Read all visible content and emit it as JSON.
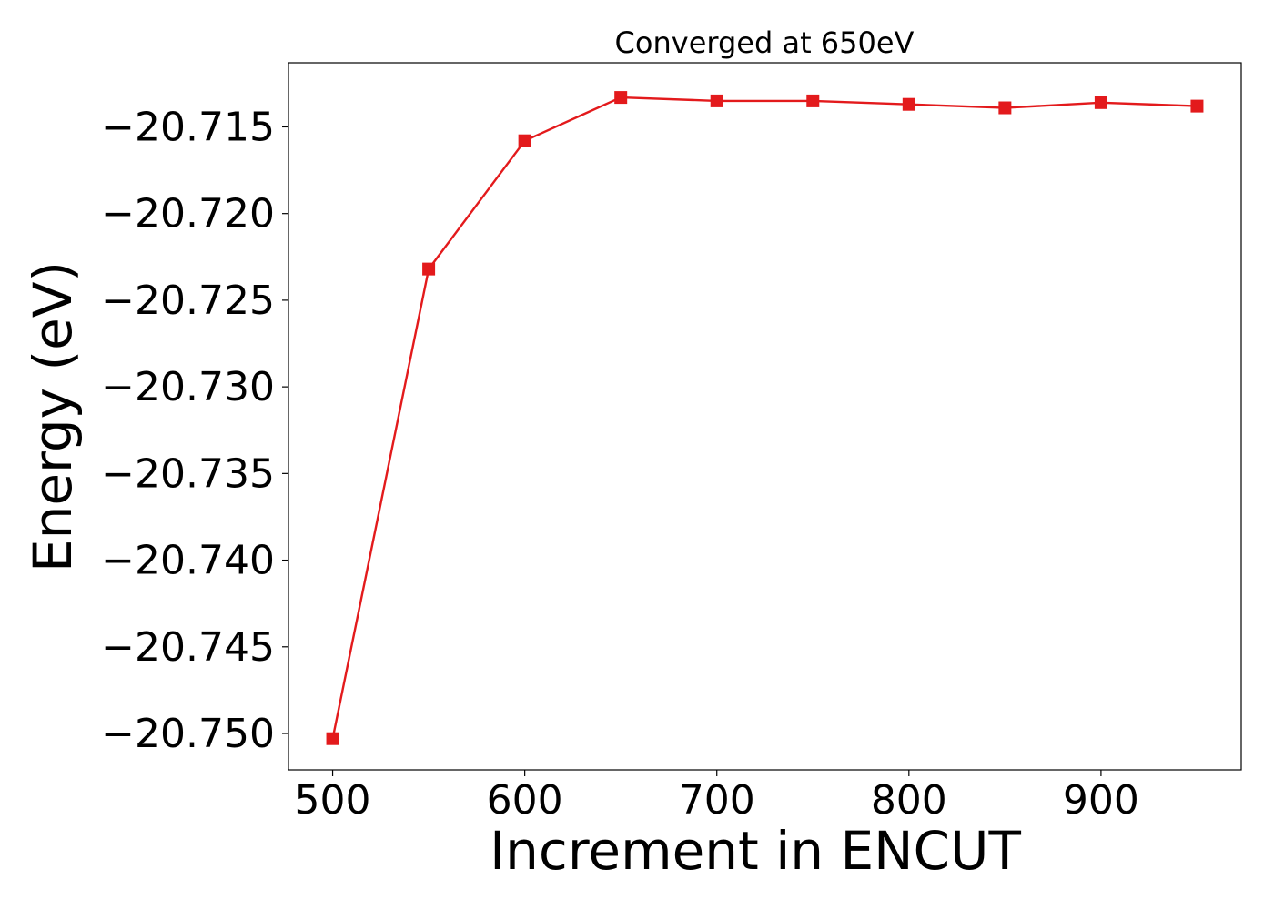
{
  "chart_data": {
    "type": "line",
    "title": "Converged at 650eV",
    "xlabel": "Increment in ENCUT",
    "ylabel": "Energy (eV)",
    "xlim": [
      477,
      973
    ],
    "ylim": [
      -20.7521,
      -20.7113
    ],
    "xticks": [
      500,
      600,
      700,
      800,
      900
    ],
    "xtick_labels": [
      "500",
      "600",
      "700",
      "800",
      "900"
    ],
    "yticks": [
      -20.715,
      -20.72,
      -20.725,
      -20.73,
      -20.735,
      -20.74,
      -20.745,
      -20.75
    ],
    "ytick_labels": [
      "−20.715",
      "−20.720",
      "−20.725",
      "−20.730",
      "−20.735",
      "−20.740",
      "−20.745",
      "−20.750"
    ],
    "grid": false,
    "series": [
      {
        "color": "#e31a1c",
        "marker": "square",
        "x": [
          500,
          550,
          600,
          650,
          700,
          750,
          800,
          850,
          900,
          950
        ],
        "y": [
          -20.7503,
          -20.7232,
          -20.7158,
          -20.7133,
          -20.7135,
          -20.7135,
          -20.7137,
          -20.7139,
          -20.7136,
          -20.7138
        ]
      }
    ]
  }
}
